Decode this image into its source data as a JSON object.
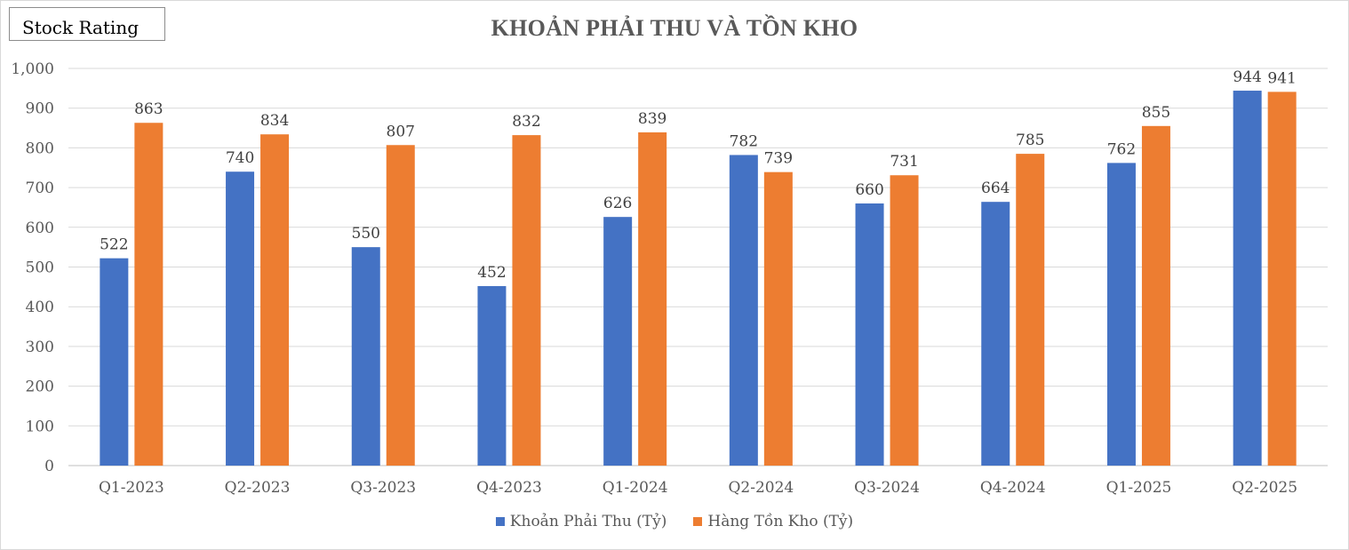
{
  "rating_box": {
    "label": "Stock Rating"
  },
  "colors": {
    "series1": "#4472c4",
    "series2": "#ed7d31",
    "grid": "#d9d9d9"
  },
  "chart_data": {
    "type": "bar",
    "title": "KHOẢN PHẢI THU VÀ TỒN KHO",
    "xlabel": "",
    "ylabel": "",
    "ylim": [
      0,
      1000
    ],
    "yticks": [
      0,
      100,
      200,
      300,
      400,
      500,
      600,
      700,
      800,
      900,
      1000
    ],
    "ytick_labels": [
      "0",
      "100",
      "200",
      "300",
      "400",
      "500",
      "600",
      "700",
      "800",
      "900",
      "1,000"
    ],
    "grid": true,
    "legend_position": "bottom",
    "categories": [
      "Q1-2023",
      "Q2-2023",
      "Q3-2023",
      "Q4-2023",
      "Q1-2024",
      "Q2-2024",
      "Q3-2024",
      "Q4-2024",
      "Q1-2025",
      "Q2-2025"
    ],
    "series": [
      {
        "name": "Khoản Phải Thu (Tỷ)",
        "color": "#4472c4",
        "values": [
          522,
          740,
          550,
          452,
          626,
          782,
          660,
          664,
          762,
          944
        ]
      },
      {
        "name": "Hàng Tồn Kho (Tỷ)",
        "color": "#ed7d31",
        "values": [
          863,
          834,
          807,
          832,
          839,
          739,
          731,
          785,
          855,
          941
        ]
      }
    ]
  }
}
